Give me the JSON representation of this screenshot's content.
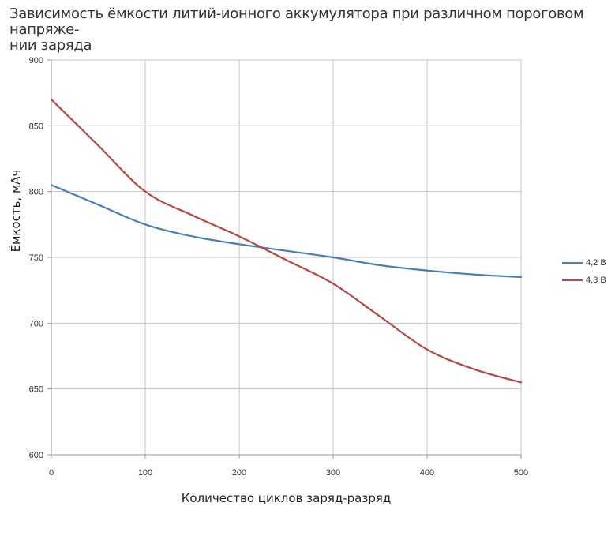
{
  "chart_data": {
    "type": "line",
    "title": "Зависимость ёмкости литий-ионного аккумулятора при различном пороговом напряже-нии заряда",
    "title_line1": "Зависимость ёмкости литий-ионного аккумулятора при различном пороговом напряже-",
    "title_line2": "нии заряда",
    "xlabel": "Количество циклов заряд-разряд",
    "ylabel": "Ёмкость, мАч",
    "xlim": [
      0,
      500
    ],
    "ylim": [
      600,
      900
    ],
    "xticks": [
      "0",
      "100",
      "200",
      "300",
      "400",
      "500"
    ],
    "yticks": [
      "600",
      "650",
      "700",
      "750",
      "800",
      "850",
      "900"
    ],
    "grid": true,
    "legend_position": "right",
    "series": [
      {
        "name": "4,2 В",
        "color": "#4a7eb5",
        "x": [
          0,
          50,
          100,
          150,
          200,
          250,
          300,
          350,
          400,
          450,
          500
        ],
        "y": [
          805,
          790,
          775,
          766,
          760,
          755,
          750,
          744,
          740,
          737,
          735
        ]
      },
      {
        "name": "4,3 В",
        "color": "#b84744",
        "x": [
          0,
          50,
          100,
          150,
          200,
          250,
          300,
          350,
          400,
          450,
          500
        ],
        "y": [
          870,
          835,
          800,
          782,
          766,
          748,
          730,
          705,
          680,
          665,
          655
        ]
      }
    ]
  }
}
